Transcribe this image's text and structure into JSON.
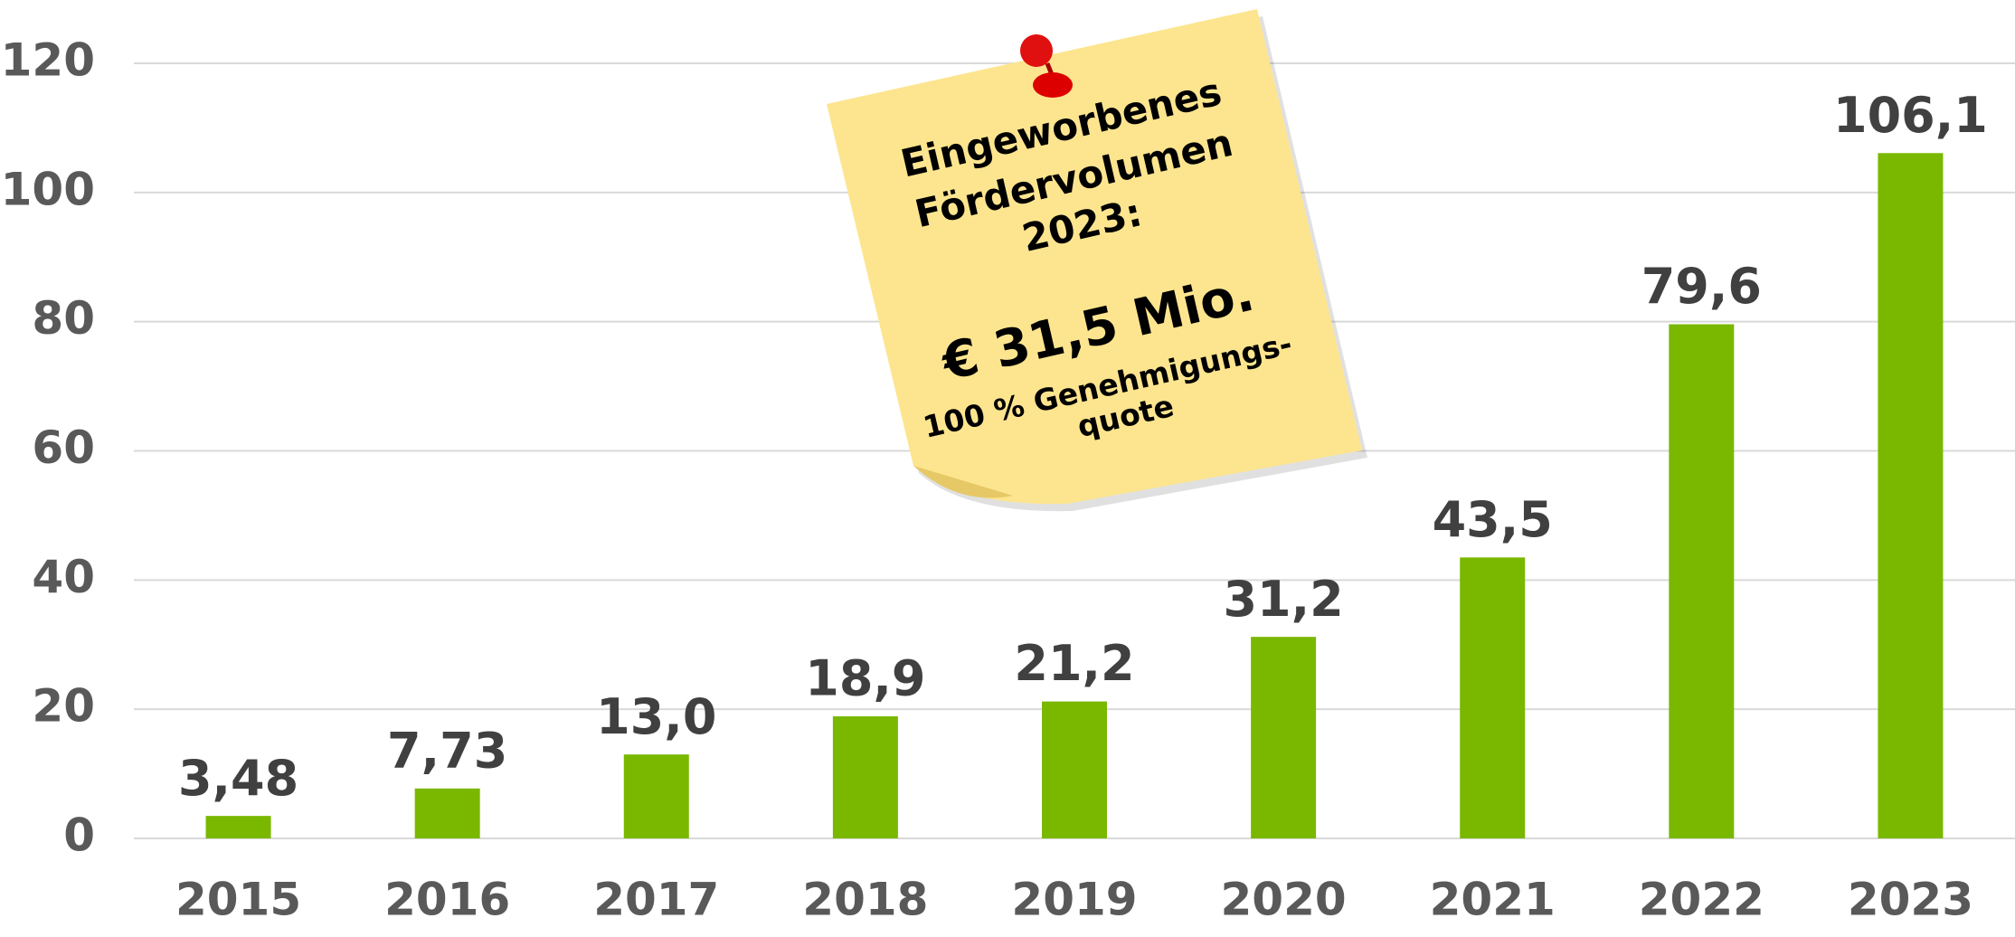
{
  "chart_data": {
    "type": "bar",
    "categories": [
      "2015",
      "2016",
      "2017",
      "2018",
      "2019",
      "2020",
      "2021",
      "2022",
      "2023"
    ],
    "values": [
      3.48,
      7.73,
      13.0,
      18.9,
      21.2,
      31.2,
      43.5,
      79.6,
      106.1
    ],
    "value_labels": [
      "3,48",
      "7,73",
      "13,0",
      "18,9",
      "21,2",
      "31,2",
      "43,5",
      "79,6",
      "106,1"
    ],
    "color": "#7ab800",
    "ylim": [
      0,
      120
    ],
    "yticks": [
      0,
      20,
      40,
      60,
      80,
      100,
      120
    ],
    "grid": true,
    "annotations": [
      "Eingeworbenes",
      "Fördervolumen",
      "2023:",
      "€ 31,5 Mio.",
      "100 % Genehmigungs-",
      "quote"
    ]
  }
}
